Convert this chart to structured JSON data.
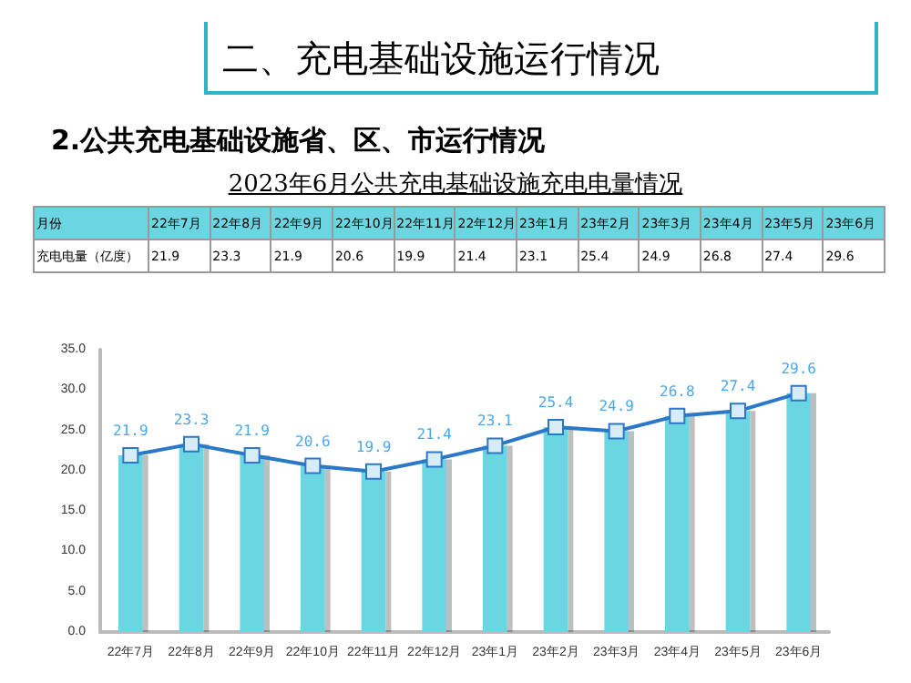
{
  "chart_data": [
    {
      "type": "other",
      "title": "2023年6月公共充电基础设施充电电量情况",
      "annotations": [
        "二、充电基础设施运行情况",
        "2.公共充电基础设施省、区、市运行情况",
        "月份",
        "充电电量（亿度）"
      ],
      "categories": [
        "22年7月",
        "22年8月",
        "22年9月",
        "22年10月",
        "22年11月",
        "22年12月",
        "23年1月",
        "23年2月",
        "23年3月",
        "23年4月",
        "23年5月",
        "23年6月"
      ],
      "values": [
        21.9,
        23.3,
        21.9,
        20.6,
        19.9,
        21.4,
        23.1,
        25.4,
        24.9,
        26.8,
        27.4,
        29.6
      ],
      "data_labels": true
    },
    {
      "type": "bar",
      "categories": [
        "22年7月",
        "22年8月",
        "22年9月",
        "22年10月",
        "22年11月",
        "22年12月",
        "23年1月",
        "23年2月",
        "23年3月",
        "23年4月",
        "23年5月",
        "23年6月"
      ],
      "series": [
        {
          "color": "#6bd6e2",
          "values": [
            21.9,
            23.3,
            21.9,
            20.6,
            19.9,
            21.4,
            23.1,
            25.4,
            24.9,
            26.8,
            27.4,
            29.6
          ]
        },
        {
          "type": "line",
          "color": "#2b78c8",
          "values": [
            21.9,
            23.3,
            21.9,
            20.6,
            19.9,
            21.4,
            23.1,
            25.4,
            24.9,
            26.8,
            27.4,
            29.6
          ],
          "value_labels": [
            "21.9",
            "23.3",
            "21.9",
            "20.6",
            "19.9",
            "21.4",
            "23.1",
            "25.4",
            "24.9",
            "26.8",
            "27.4",
            "29.6"
          ]
        }
      ],
      "ylim": [
        0,
        35
      ],
      "yticks": [
        {
          "value": 0,
          "label": "0.0"
        },
        {
          "value": 5,
          "label": "5.0"
        },
        {
          "value": 10,
          "label": "10.0"
        },
        {
          "value": 15,
          "label": "15.0"
        },
        {
          "value": 20,
          "label": "20.0"
        },
        {
          "value": 25,
          "label": "25.0"
        },
        {
          "value": 30,
          "label": "30.0"
        },
        {
          "value": 35,
          "label": "35.0"
        }
      ],
      "grid": false,
      "marker": "square",
      "line_style": "solid"
    }
  ]
}
